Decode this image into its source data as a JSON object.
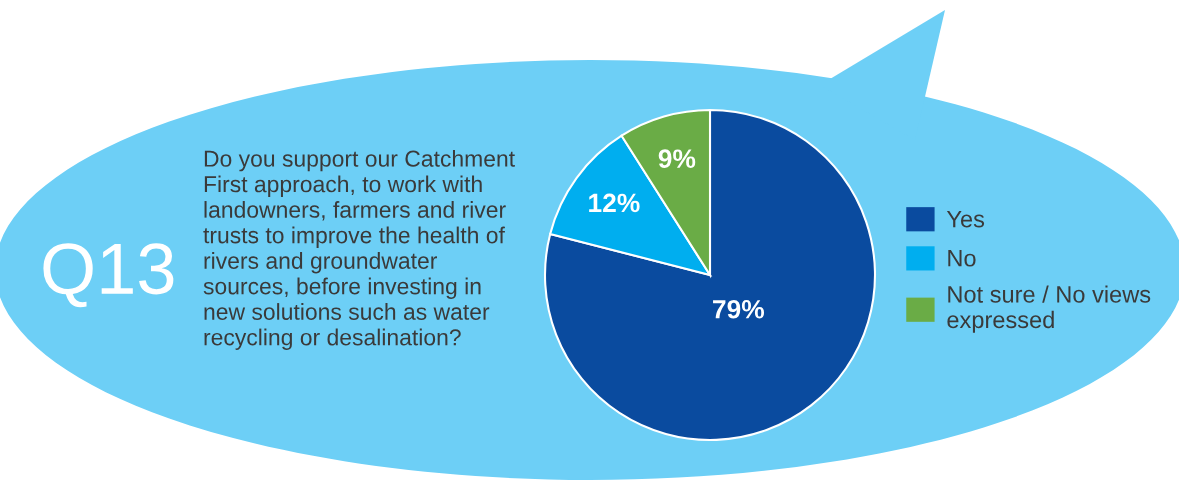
{
  "chart_data": {
    "type": "pie",
    "title": "Q13",
    "subtitle": "Do you support our Catchment\nFirst approach, to work with\nlandowners, farmers and river\ntrusts to improve the health of\nrivers and groundwater\nsources, before investing in\nnew solutions such as water\nrecycling or desalination?",
    "categories": [
      "Yes",
      "No",
      "Not sure / No views expressed"
    ],
    "values": [
      79,
      12,
      9
    ],
    "colors": [
      "#0a4b9f",
      "#00aeef",
      "#6aac46"
    ],
    "value_labels": [
      "79%",
      "12%",
      "9%"
    ],
    "legend": "right"
  }
}
